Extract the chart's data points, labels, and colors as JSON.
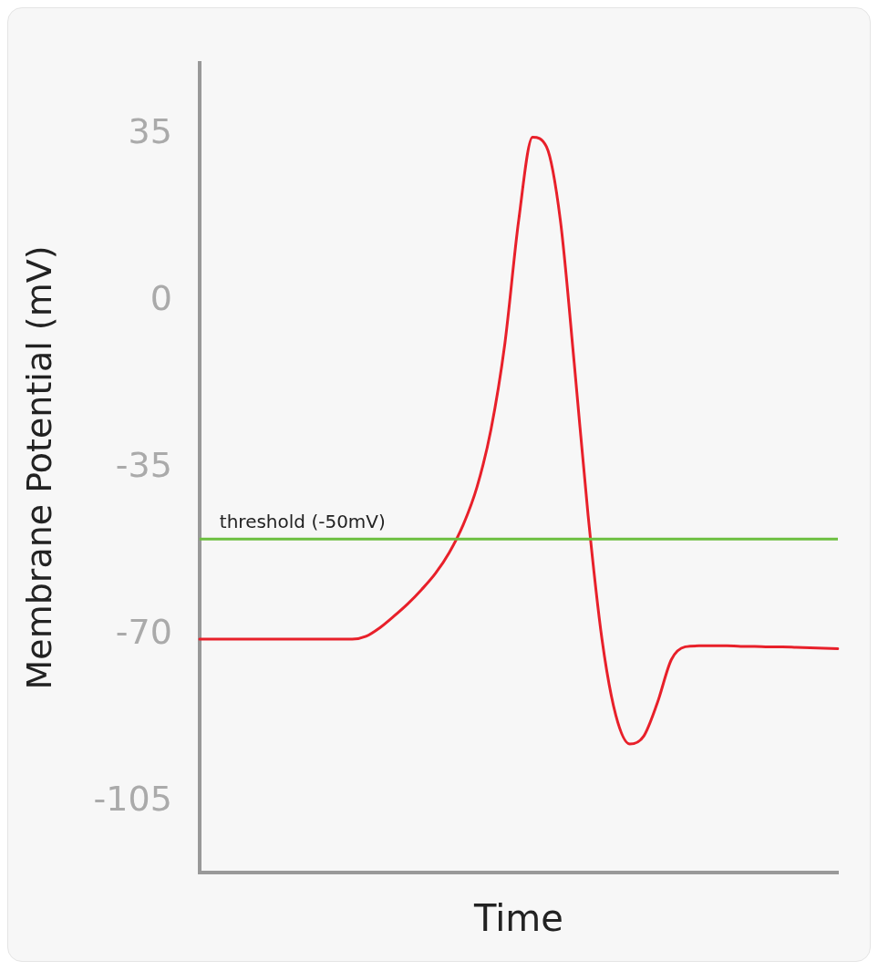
{
  "chart_data": {
    "type": "line",
    "xlabel": "Time",
    "ylabel": "Membrane Potential (mV)",
    "categories": [
      null,
      null,
      null,
      null,
      null,
      null,
      null,
      null,
      null,
      null,
      null,
      null,
      null,
      null,
      null,
      null,
      null,
      null,
      null,
      null,
      null,
      null,
      null,
      null,
      null,
      null,
      null,
      null,
      null,
      null,
      null,
      null,
      null,
      null,
      null,
      null,
      null,
      null,
      null,
      null,
      null,
      null,
      null,
      null,
      null,
      null,
      null
    ],
    "series": [
      {
        "color": "#e8202a",
        "values": [
          -71,
          -71,
          -71,
          -71,
          -71,
          -71,
          -71,
          -71,
          -71,
          -71,
          -71,
          -71,
          -70.4,
          -68.6,
          -66.2,
          -63.6,
          -60.6,
          -57.2,
          -52.8,
          -47,
          -39,
          -27,
          -9,
          17,
          34.4,
          32.4,
          17,
          -13,
          -45,
          -71,
          -87,
          -93,
          -91.4,
          -84.3,
          -75.3,
          -72.6,
          -72.4,
          -72.4,
          -72.4,
          -72.5,
          -72.5,
          -72.6,
          -72.6,
          -72.7,
          -72.8,
          -72.9,
          -73
        ]
      }
    ],
    "ylim": [
      -120,
      50
    ],
    "yticks": [
      35,
      0,
      -35,
      -70,
      -105
    ],
    "grid": false,
    "legend": false,
    "tick_labels": "y",
    "marker": "none",
    "line_style": "solid",
    "ref_lines": [
      {
        "axis": "y",
        "value": -50,
        "label": "threshold (-50mV)",
        "color": "#6cbf3f"
      }
    ]
  }
}
